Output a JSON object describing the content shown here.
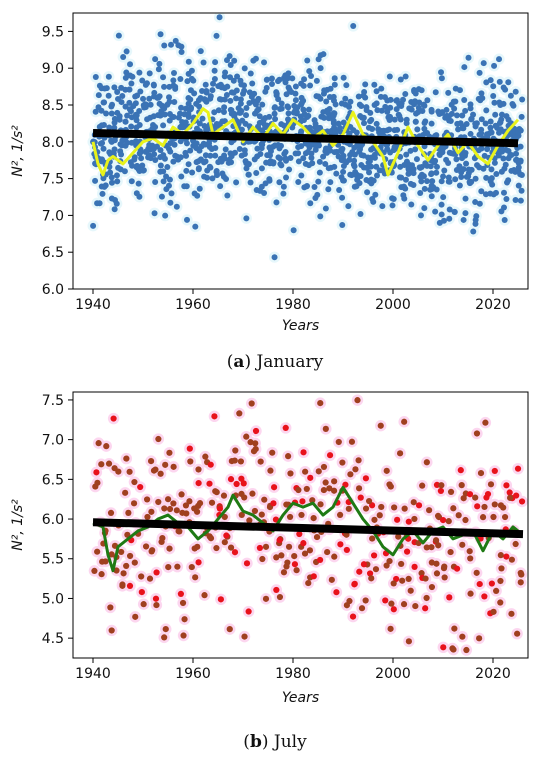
{
  "chart_data": [
    {
      "type": "scatter",
      "panel_letter": "a",
      "caption": "January",
      "xlabel": "Years",
      "ylabel": "N², 1/s²",
      "xlim": [
        1936,
        2027
      ],
      "ylim": [
        6.0,
        9.75
      ],
      "xticks": [
        1940,
        1960,
        1980,
        2000,
        2020
      ],
      "yticks": [
        6.0,
        6.5,
        7.0,
        7.5,
        8.0,
        8.5,
        9.0,
        9.5
      ],
      "x_range": [
        1940,
        2025
      ],
      "grid": false,
      "series": [
        {
          "kind": "points",
          "color": "#3a73b5",
          "halo_color": "#e6f7fb",
          "center_trend": [
            [
              1940,
              8.1
            ],
            [
              1960,
              8.25
            ],
            [
              1980,
              8.15
            ],
            [
              2000,
              7.95
            ],
            [
              2025,
              8.0
            ]
          ],
          "spread": 0.45,
          "points_per_year": 17,
          "y_min": 6.2,
          "y_max": 9.7
        },
        {
          "kind": "line",
          "color": "#e8f21b",
          "values": [
            [
              1940,
              8.0
            ],
            [
              1941,
              7.7
            ],
            [
              1942,
              7.55
            ],
            [
              1943,
              7.75
            ],
            [
              1944,
              7.8
            ],
            [
              1946,
              7.7
            ],
            [
              1948,
              7.85
            ],
            [
              1950,
              8.0
            ],
            [
              1952,
              8.05
            ],
            [
              1954,
              7.95
            ],
            [
              1956,
              8.2
            ],
            [
              1958,
              8.1
            ],
            [
              1960,
              8.25
            ],
            [
              1962,
              8.45
            ],
            [
              1963,
              8.4
            ],
            [
              1964,
              8.1
            ],
            [
              1966,
              8.2
            ],
            [
              1968,
              8.3
            ],
            [
              1970,
              8.0
            ],
            [
              1972,
              8.2
            ],
            [
              1974,
              8.05
            ],
            [
              1976,
              8.25
            ],
            [
              1978,
              8.1
            ],
            [
              1980,
              8.3
            ],
            [
              1982,
              8.2
            ],
            [
              1984,
              8.05
            ],
            [
              1986,
              8.15
            ],
            [
              1988,
              7.95
            ],
            [
              1990,
              8.1
            ],
            [
              1992,
              8.4
            ],
            [
              1994,
              8.1
            ],
            [
              1996,
              8.0
            ],
            [
              1998,
              7.8
            ],
            [
              1999,
              7.55
            ],
            [
              2001,
              7.85
            ],
            [
              2003,
              8.2
            ],
            [
              2005,
              7.95
            ],
            [
              2007,
              7.75
            ],
            [
              2009,
              7.95
            ],
            [
              2011,
              8.1
            ],
            [
              2013,
              7.85
            ],
            [
              2015,
              8.0
            ],
            [
              2017,
              7.8
            ],
            [
              2019,
              7.7
            ],
            [
              2021,
              7.95
            ],
            [
              2023,
              8.15
            ],
            [
              2025,
              8.3
            ]
          ]
        },
        {
          "kind": "trend",
          "color": "#000000",
          "values": [
            [
              1940,
              8.12
            ],
            [
              2025,
              7.98
            ]
          ]
        }
      ]
    },
    {
      "type": "scatter",
      "panel_letter": "b",
      "caption": "July",
      "xlabel": "Years",
      "ylabel": "N², 1/s²",
      "xlim": [
        1936,
        2027
      ],
      "ylim": [
        4.25,
        7.6
      ],
      "xticks": [
        1940,
        1960,
        1980,
        2000,
        2020
      ],
      "yticks": [
        4.5,
        5.0,
        5.5,
        6.0,
        6.5,
        7.0,
        7.5
      ],
      "x_range": [
        1940,
        2025
      ],
      "grid": false,
      "series": [
        {
          "kind": "points",
          "color": "#a0401f",
          "alt_color": "#e8121b",
          "halo_color": "#fcd6ef",
          "center_trend": [
            [
              1940,
              5.8
            ],
            [
              1970,
              6.0
            ],
            [
              1990,
              5.9
            ],
            [
              2005,
              5.7
            ],
            [
              2025,
              5.8
            ]
          ],
          "spread": 0.65,
          "points_per_year": 5,
          "y_min": 4.35,
          "y_max": 7.55
        },
        {
          "kind": "line",
          "color": "#1f7a14",
          "values": [
            [
              1940,
              5.95
            ],
            [
              1942,
              5.9
            ],
            [
              1943,
              5.55
            ],
            [
              1944,
              5.35
            ],
            [
              1945,
              5.65
            ],
            [
              1947,
              5.75
            ],
            [
              1949,
              5.85
            ],
            [
              1951,
              5.9
            ],
            [
              1953,
              6.0
            ],
            [
              1955,
              6.05
            ],
            [
              1957,
              5.95
            ],
            [
              1959,
              5.9
            ],
            [
              1961,
              5.75
            ],
            [
              1963,
              5.85
            ],
            [
              1965,
              6.0
            ],
            [
              1967,
              6.15
            ],
            [
              1968,
              6.3
            ],
            [
              1970,
              6.1
            ],
            [
              1972,
              6.05
            ],
            [
              1974,
              5.95
            ],
            [
              1976,
              5.85
            ],
            [
              1978,
              6.05
            ],
            [
              1980,
              6.2
            ],
            [
              1982,
              6.15
            ],
            [
              1984,
              6.2
            ],
            [
              1986,
              6.05
            ],
            [
              1988,
              6.15
            ],
            [
              1990,
              6.4
            ],
            [
              1992,
              6.2
            ],
            [
              1994,
              6.0
            ],
            [
              1996,
              5.85
            ],
            [
              1998,
              5.65
            ],
            [
              2000,
              5.55
            ],
            [
              2002,
              5.75
            ],
            [
              2004,
              5.85
            ],
            [
              2006,
              5.7
            ],
            [
              2008,
              5.85
            ],
            [
              2010,
              5.9
            ],
            [
              2012,
              5.75
            ],
            [
              2014,
              5.8
            ],
            [
              2016,
              5.85
            ],
            [
              2018,
              5.6
            ],
            [
              2020,
              5.85
            ],
            [
              2022,
              5.75
            ],
            [
              2024,
              5.9
            ],
            [
              2025,
              5.85
            ]
          ]
        },
        {
          "kind": "trend",
          "color": "#000000",
          "values": [
            [
              1940,
              5.96
            ],
            [
              2026,
              5.81
            ]
          ]
        }
      ]
    }
  ]
}
